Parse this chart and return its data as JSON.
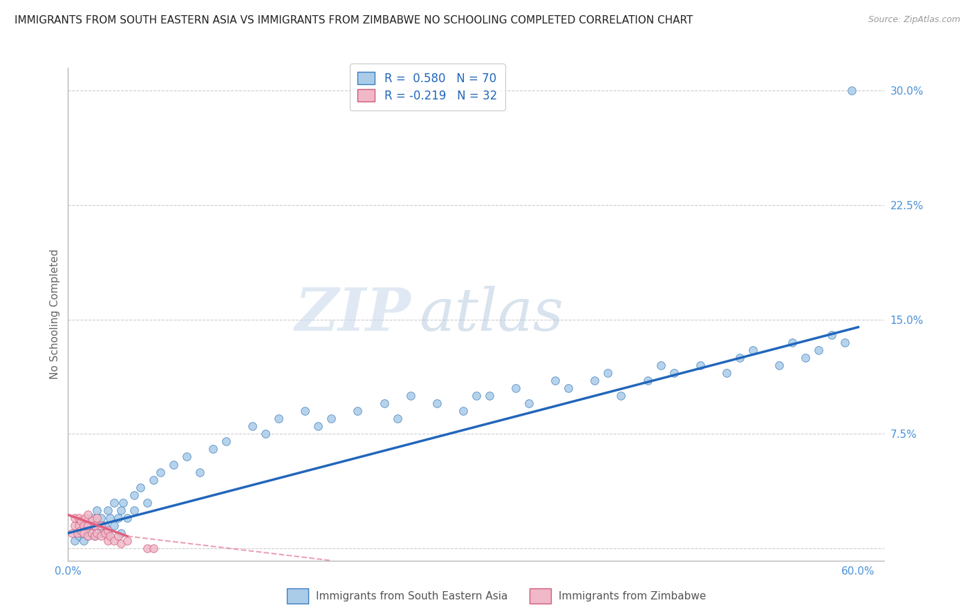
{
  "title": "IMMIGRANTS FROM SOUTH EASTERN ASIA VS IMMIGRANTS FROM ZIMBABWE NO SCHOOLING COMPLETED CORRELATION CHART",
  "source": "Source: ZipAtlas.com",
  "ylabel": "No Schooling Completed",
  "xlim": [
    0.0,
    0.62
  ],
  "ylim": [
    -0.008,
    0.315
  ],
  "xticks": [
    0.0,
    0.1,
    0.2,
    0.3,
    0.4,
    0.5,
    0.6
  ],
  "xtick_labels": [
    "0.0%",
    "",
    "",
    "",
    "",
    "",
    "60.0%"
  ],
  "yticks": [
    0.0,
    0.075,
    0.15,
    0.225,
    0.3
  ],
  "ytick_labels": [
    "",
    "7.5%",
    "15.0%",
    "22.5%",
    "30.0%"
  ],
  "series1_face_color": "#aacce8",
  "series1_edge_color": "#3a7bbf",
  "series2_face_color": "#f0b8c8",
  "series2_edge_color": "#d05878",
  "line1_color": "#2266bb",
  "line2_color": "#e06080",
  "R1": 0.58,
  "N1": 70,
  "R2": -0.219,
  "N2": 32,
  "legend_label1": "Immigrants from South Eastern Asia",
  "legend_label2": "Immigrants from Zimbabwe",
  "watermark_zip": "ZIP",
  "watermark_atlas": "atlas",
  "title_fontsize": 11,
  "grid_color": "#cccccc",
  "tick_color": "#4a90d9",
  "scatter1_x": [
    0.005,
    0.008,
    0.01,
    0.012,
    0.015,
    0.015,
    0.018,
    0.018,
    0.02,
    0.02,
    0.022,
    0.025,
    0.025,
    0.028,
    0.03,
    0.03,
    0.032,
    0.035,
    0.035,
    0.038,
    0.04,
    0.04,
    0.042,
    0.045,
    0.05,
    0.05,
    0.055,
    0.06,
    0.065,
    0.07,
    0.08,
    0.09,
    0.1,
    0.11,
    0.12,
    0.14,
    0.15,
    0.16,
    0.18,
    0.19,
    0.2,
    0.22,
    0.24,
    0.25,
    0.26,
    0.28,
    0.3,
    0.31,
    0.32,
    0.34,
    0.35,
    0.37,
    0.38,
    0.4,
    0.41,
    0.42,
    0.44,
    0.45,
    0.46,
    0.48,
    0.5,
    0.51,
    0.52,
    0.54,
    0.55,
    0.56,
    0.57,
    0.58,
    0.59,
    0.595
  ],
  "scatter1_y": [
    0.005,
    0.008,
    0.01,
    0.005,
    0.008,
    0.015,
    0.01,
    0.02,
    0.008,
    0.015,
    0.025,
    0.01,
    0.02,
    0.015,
    0.01,
    0.025,
    0.02,
    0.015,
    0.03,
    0.02,
    0.01,
    0.025,
    0.03,
    0.02,
    0.025,
    0.035,
    0.04,
    0.03,
    0.045,
    0.05,
    0.055,
    0.06,
    0.05,
    0.065,
    0.07,
    0.08,
    0.075,
    0.085,
    0.09,
    0.08,
    0.085,
    0.09,
    0.095,
    0.085,
    0.1,
    0.095,
    0.09,
    0.1,
    0.1,
    0.105,
    0.095,
    0.11,
    0.105,
    0.11,
    0.115,
    0.1,
    0.11,
    0.12,
    0.115,
    0.12,
    0.115,
    0.125,
    0.13,
    0.12,
    0.135,
    0.125,
    0.13,
    0.14,
    0.135,
    0.3
  ],
  "scatter2_x": [
    0.003,
    0.005,
    0.005,
    0.007,
    0.008,
    0.008,
    0.01,
    0.01,
    0.012,
    0.012,
    0.013,
    0.015,
    0.015,
    0.015,
    0.018,
    0.018,
    0.02,
    0.02,
    0.022,
    0.022,
    0.025,
    0.025,
    0.028,
    0.03,
    0.03,
    0.032,
    0.035,
    0.038,
    0.04,
    0.045,
    0.06,
    0.065
  ],
  "scatter2_y": [
    0.01,
    0.015,
    0.02,
    0.01,
    0.015,
    0.02,
    0.012,
    0.018,
    0.01,
    0.015,
    0.02,
    0.008,
    0.015,
    0.022,
    0.01,
    0.018,
    0.008,
    0.015,
    0.01,
    0.02,
    0.008,
    0.015,
    0.01,
    0.005,
    0.012,
    0.008,
    0.005,
    0.008,
    0.003,
    0.005,
    0.0,
    0.0
  ]
}
